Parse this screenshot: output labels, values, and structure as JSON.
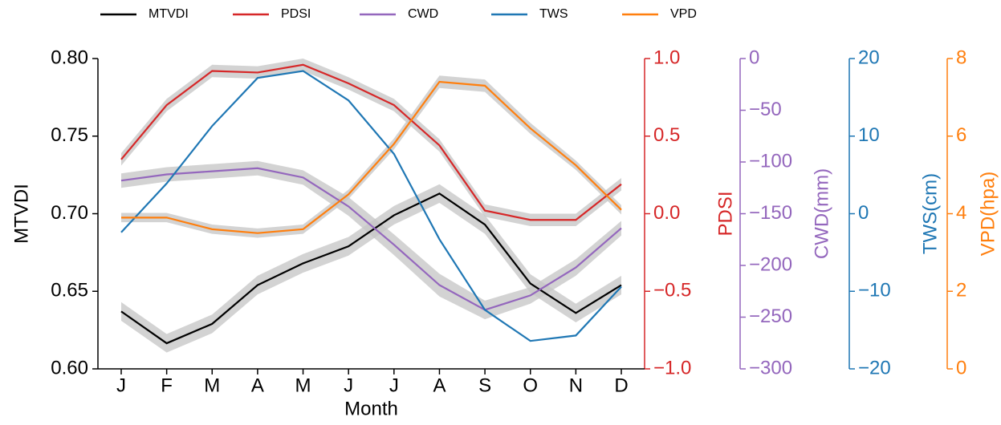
{
  "chart_data": {
    "type": "line",
    "x_label": "Month",
    "categories": [
      "J",
      "F",
      "M",
      "A",
      "M",
      "J",
      "J",
      "A",
      "S",
      "O",
      "N",
      "D"
    ],
    "series": [
      {
        "name": "MTVDI",
        "color": "#000000",
        "axis_label": "MTVDI",
        "values": [
          0.637,
          0.6165,
          0.629,
          0.654,
          0.668,
          0.679,
          0.699,
          0.713,
          0.693,
          0.655,
          0.636,
          0.654
        ],
        "error": [
          0.006,
          0.006,
          0.006,
          0.006,
          0.006,
          0.006,
          0.006,
          0.006,
          0.006,
          0.006,
          0.006,
          0.006
        ],
        "ylim": [
          0.6,
          0.8
        ],
        "yticks": [
          {
            "value": 0.6,
            "label": "0.60"
          },
          0.65,
          {
            "value": 0.7,
            "label": "0.70"
          },
          0.75,
          {
            "value": 0.8,
            "label": "0.80"
          }
        ]
      },
      {
        "name": "PDSI",
        "color": "#d62728",
        "axis_label": "PDSI",
        "values": [
          0.35,
          0.7,
          0.92,
          0.91,
          0.96,
          0.84,
          0.7,
          0.44,
          0.02,
          -0.04,
          -0.04,
          0.19
        ],
        "error": [
          0.04,
          0.04,
          0.04,
          0.04,
          0.04,
          0.04,
          0.04,
          0.04,
          0.04,
          0.04,
          0.04,
          0.04
        ],
        "ylim": [
          -1,
          1
        ],
        "yticks": [
          {
            "value": -1,
            "label": "−1.0"
          },
          {
            "value": -0.5,
            "label": "−0.5"
          },
          {
            "value": 0,
            "label": "0.0"
          },
          0.5,
          {
            "value": 1,
            "label": "1.0"
          }
        ]
      },
      {
        "name": "CWD",
        "color": "#9467bd",
        "axis_label": "CWD(mm)",
        "values": [
          -118,
          -112,
          -109,
          -106,
          -115,
          -143,
          -180,
          -219,
          -243,
          -229,
          -202,
          -164
        ],
        "error": [
          7,
          7,
          7,
          7,
          7,
          9,
          10,
          11,
          9,
          8,
          8,
          7
        ],
        "ylim": [
          -300,
          0
        ],
        "yticks": [
          {
            "value": -300,
            "label": "−300"
          },
          {
            "value": -250,
            "label": "−250"
          },
          {
            "value": -200,
            "label": "−200"
          },
          {
            "value": -150,
            "label": "−150"
          },
          {
            "value": -100,
            "label": "−100"
          },
          {
            "value": -50,
            "label": "−50"
          },
          0
        ]
      },
      {
        "name": "TWS",
        "color": "#1f77b4",
        "axis_label": "TWS(cm)",
        "values": [
          -2.4,
          3.9,
          11.3,
          17.5,
          18.4,
          14.6,
          7.7,
          -3.3,
          -12.4,
          -16.4,
          -15.7,
          -9.4
        ],
        "ylim": [
          -20,
          20
        ],
        "yticks": [
          {
            "value": -20,
            "label": "−20"
          },
          {
            "value": -10,
            "label": "−10"
          },
          0,
          10,
          20
        ]
      },
      {
        "name": "VPD",
        "color": "#ff7f0e",
        "axis_label": "VPD(hpa)",
        "values": [
          3.9,
          3.9,
          3.6,
          3.5,
          3.6,
          4.5,
          5.8,
          7.4,
          7.3,
          6.2,
          5.25,
          4.1
        ],
        "error": [
          0.12,
          0.12,
          0.12,
          0.12,
          0.12,
          0.12,
          0.14,
          0.16,
          0.16,
          0.14,
          0.12,
          0.12
        ],
        "ylim": [
          0,
          8
        ],
        "yticks": [
          0,
          2,
          4,
          6,
          8
        ]
      }
    ]
  }
}
